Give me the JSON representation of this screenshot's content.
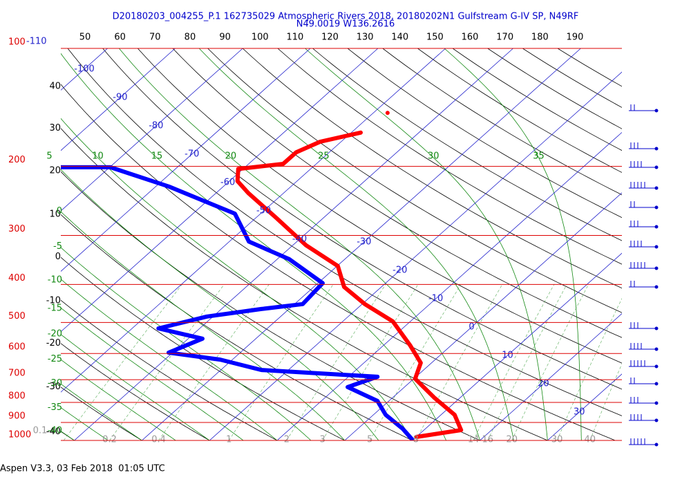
{
  "chart_data": {
    "type": "skew-t",
    "title": "D20180203_004255_P.1 162735029 Atmospheric Rivers 2018, 20180202N1 Gulfstream G-IV SP, N49RF",
    "subtitle": "N49.0019 W136.2616",
    "footer": "Aspen V3.3, 03 Feb 2018  01:05 UTC",
    "log_y": true,
    "ylim": [
      1000,
      100
    ],
    "yticks": [
      100,
      200,
      300,
      400,
      500,
      600,
      700,
      800,
      900,
      1000
    ],
    "xlim": [
      -42,
      41
    ],
    "isotherms": [
      -110,
      -100,
      -90,
      -80,
      -70,
      -60,
      -50,
      -40,
      -30,
      -20,
      -10,
      0,
      10,
      20,
      30
    ],
    "theta_top": [
      50,
      60,
      70,
      80,
      90,
      100,
      110,
      120,
      130,
      140,
      150,
      160,
      170,
      180,
      190
    ],
    "theta_left": [
      40,
      30,
      20,
      10,
      0,
      -10,
      -20,
      -30,
      -40
    ],
    "moist_top": [
      5,
      10,
      15,
      20,
      25,
      30,
      35
    ],
    "moist_left": [
      0,
      -5,
      -10,
      -15,
      -20,
      -25,
      -30,
      -35,
      -40
    ],
    "mixing_ratio": [
      0.1,
      0.2,
      0.4,
      1,
      2,
      3,
      5,
      8,
      14,
      16,
      20,
      30,
      40
    ],
    "series": [
      {
        "color": "#ff0000",
        "x": [
          980,
          941,
          860,
          777,
          696,
          634,
          573,
          497,
          449,
          406,
          359,
          318,
          270,
          234,
          218,
          203,
          197,
          184,
          173,
          164,
          null,
          146
        ],
        "values": [
          10.0,
          15.5,
          12.0,
          6.1,
          0.2,
          -1.6,
          -6.0,
          -12.6,
          -19.6,
          -25.5,
          -29.9,
          -38.0,
          -47.1,
          -55.2,
          -58.8,
          -60.7,
          -54.9,
          -54.9,
          -53.1,
          -48.6,
          null,
          -47.9
        ]
      },
      {
        "color": "#0000ff",
        "x": [
          992,
          933,
          860,
          793,
          731,
          688,
          661,
          622,
          597,
          550,
          518,
          483,
          462,
          449,
          397,
          345,
          311,
          264,
          225,
          201,
          201
        ],
        "values": [
          9.7,
          6.6,
          1.8,
          -1.7,
          -8.4,
          -5.7,
          -24.0,
          -31.8,
          -40.6,
          -37.9,
          -46.1,
          -40.9,
          -34.1,
          -28.8,
          -29.3,
          -38.2,
          -47.1,
          -53.8,
          -68.1,
          -79.9,
          -87.3
        ]
      }
    ]
  }
}
